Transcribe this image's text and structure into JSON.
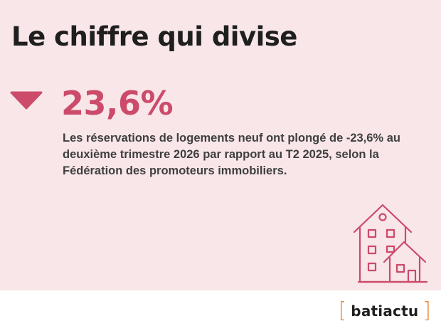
{
  "headline": "Le chiffre qui divise",
  "stat": {
    "value": "23,6%",
    "trend_icon": "down-triangle-icon",
    "color": "#cc4a6a"
  },
  "description": "Les réservations de logements neuf ont plongé de -23,6% au deuxième trimestre 2026 par rapport au T2 2025, selon la Fédération des promoteurs immobiliers.",
  "illustration": {
    "icon": "houses-icon",
    "color": "#cc4a6a"
  },
  "brand": {
    "open_bracket": "[",
    "name": "batiactu",
    "close_bracket": "]",
    "bracket_color": "#e8893a"
  },
  "colors": {
    "background": "#f8e6e9",
    "accent": "#cc4a6a",
    "text": "#1f1f1f"
  }
}
